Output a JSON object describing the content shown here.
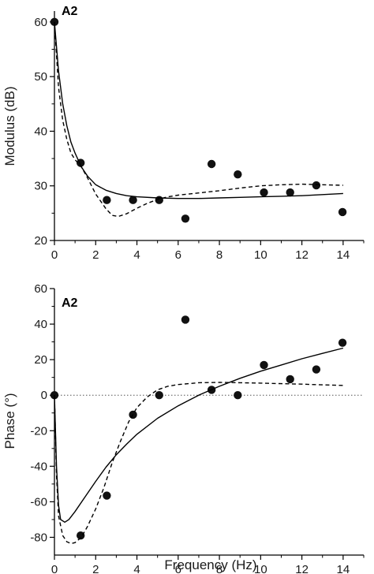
{
  "chart_data": [
    {
      "type": "scatter",
      "panel_label": "A2",
      "xlabel": "",
      "ylabel": "Modulus (dB)",
      "xlim": [
        0,
        15
      ],
      "ylim": [
        20,
        62
      ],
      "xticks": [
        0,
        2,
        4,
        6,
        8,
        10,
        12,
        14
      ],
      "yticks": [
        20,
        30,
        40,
        50,
        60
      ],
      "xtick_labels": [
        "0",
        "2",
        "4",
        "6",
        "8",
        "10",
        "12",
        "14"
      ],
      "ytick_labels": [
        "20",
        "30",
        "40",
        "50",
        "60"
      ],
      "reference_line": null,
      "series": [
        {
          "style": "markers",
          "x": [
            0,
            1.27,
            2.54,
            3.81,
            5.08,
            6.35,
            7.62,
            8.89,
            10.16,
            11.43,
            12.7,
            13.97
          ],
          "y": [
            60,
            34.2,
            27.4,
            27.4,
            27.4,
            24,
            34,
            32.1,
            28.8,
            28.8,
            30.1,
            25.2
          ]
        },
        {
          "style": "solid",
          "x": [
            0,
            0.2,
            0.4,
            0.6,
            0.8,
            1.0,
            1.3,
            1.6,
            2.0,
            2.5,
            3.0,
            3.5,
            4.0,
            5.0,
            6.0,
            7.0,
            8.0,
            9.0,
            10.0,
            11.0,
            12.0,
            13.0,
            14.0
          ],
          "y": [
            60,
            51,
            45,
            41,
            38,
            36,
            33.5,
            31.8,
            30.2,
            29.2,
            28.6,
            28.2,
            28.0,
            27.8,
            27.7,
            27.7,
            27.8,
            27.9,
            28.0,
            28.1,
            28.2,
            28.4,
            28.6
          ]
        },
        {
          "style": "dashed",
          "x": [
            0,
            0.2,
            0.4,
            0.6,
            0.8,
            1.0,
            1.3,
            1.6,
            2.0,
            2.5,
            2.8,
            3.1,
            3.5,
            4.0,
            4.5,
            5.0,
            5.5,
            6.0,
            7.0,
            8.0,
            9.0,
            10.0,
            11.0,
            12.0,
            13.0,
            14.0
          ],
          "y": [
            60,
            48,
            42,
            38.5,
            36,
            34.8,
            33.5,
            31.5,
            28.5,
            25.8,
            24.6,
            24.4,
            24.9,
            25.9,
            26.8,
            27.5,
            28.0,
            28.3,
            28.7,
            29.1,
            29.6,
            30.0,
            30.2,
            30.3,
            30.2,
            30.1
          ]
        }
      ]
    },
    {
      "type": "scatter",
      "panel_label": "A2",
      "xlabel": "Frequency (Hz)",
      "ylabel": "Phase (°)",
      "xlim": [
        0,
        15
      ],
      "ylim": [
        -90,
        60
      ],
      "xticks": [
        0,
        2,
        4,
        6,
        8,
        10,
        12,
        14
      ],
      "yticks": [
        -80,
        -60,
        -40,
        -20,
        0,
        20,
        40,
        60
      ],
      "xtick_labels": [
        "0",
        "2",
        "4",
        "6",
        "8",
        "10",
        "12",
        "14"
      ],
      "ytick_labels": [
        "-80",
        "-60",
        "-40",
        "-20",
        "0",
        "20",
        "40",
        "60"
      ],
      "reference_line": 0,
      "series": [
        {
          "style": "markers",
          "x": [
            0,
            1.27,
            2.54,
            3.81,
            5.08,
            6.35,
            7.62,
            8.89,
            10.16,
            11.43,
            12.7,
            13.97
          ],
          "y": [
            0,
            -79,
            -56.5,
            -11,
            0,
            42.5,
            3,
            0,
            17,
            9,
            14.5,
            29.5
          ]
        },
        {
          "style": "solid",
          "x": [
            0,
            0.1,
            0.2,
            0.3,
            0.5,
            0.7,
            1.0,
            1.5,
            2.0,
            2.5,
            3.0,
            3.5,
            4.0,
            5.0,
            6.0,
            7.0,
            8.0,
            9.0,
            10.0,
            11.0,
            12.0,
            13.0,
            14.0
          ],
          "y": [
            0,
            -40,
            -62,
            -70,
            -71.5,
            -70,
            -65.5,
            -57,
            -48.5,
            -40.5,
            -33.5,
            -27.5,
            -22,
            -13,
            -6,
            0,
            5,
            9.5,
            13.5,
            17,
            20.5,
            23.5,
            26.5
          ]
        },
        {
          "style": "dashed",
          "x": [
            0,
            0.1,
            0.2,
            0.4,
            0.6,
            0.8,
            1.0,
            1.3,
            1.6,
            2.0,
            2.4,
            2.8,
            3.2,
            3.6,
            4.0,
            4.5,
            5.0,
            5.5,
            6.0,
            6.5,
            7.0,
            8.0,
            9.0,
            10.0,
            11.0,
            12.0,
            13.0,
            14.0
          ],
          "y": [
            0,
            -45,
            -68,
            -79,
            -82.5,
            -83.5,
            -83,
            -80,
            -74,
            -64,
            -52,
            -38,
            -26,
            -15,
            -7,
            -1,
            3,
            5,
            6,
            6.5,
            7,
            7.2,
            7,
            6.8,
            6.5,
            6.2,
            5.8,
            5.5
          ]
        }
      ]
    }
  ]
}
